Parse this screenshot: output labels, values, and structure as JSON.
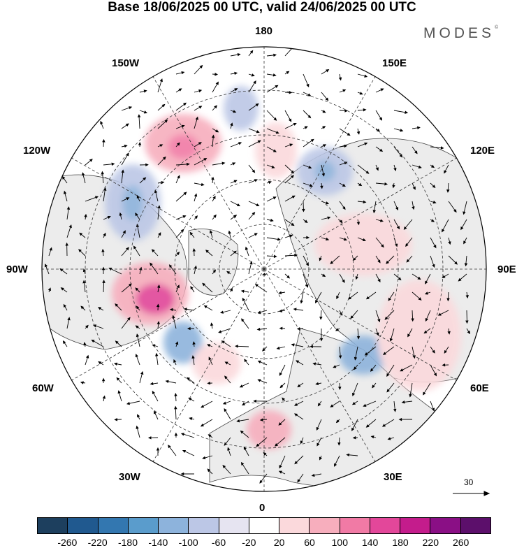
{
  "title": "Base 18/06/2025 00 UTC, valid 24/06/2025 00 UTC",
  "brand": "MODES",
  "brand_mark": "©",
  "longitude_labels": {
    "top": "180",
    "bottom": "0",
    "left": "90W",
    "right": "90E",
    "upper_left_1": "150W",
    "upper_left_2": "120W",
    "upper_right_1": "150E",
    "upper_right_2": "120E",
    "lower_left_1": "60W",
    "lower_left_2": "30W",
    "lower_right_1": "60E",
    "lower_right_2": "30E"
  },
  "reference_vector": {
    "label": "30"
  },
  "colorbar": {
    "ticks": [
      "-260",
      "-220",
      "-180",
      "-140",
      "-100",
      "-60",
      "-20",
      "20",
      "60",
      "100",
      "140",
      "180",
      "220",
      "260"
    ],
    "colors": [
      "#1d3f5e",
      "#20598f",
      "#3377b0",
      "#5a9ccc",
      "#8db3dc",
      "#bcc7e6",
      "#e6e4f1",
      "#ffffff",
      "#fbd9dc",
      "#f7aebd",
      "#f17aa5",
      "#e3479a",
      "#c41c8c",
      "#8a0f85",
      "#5c0f6b"
    ]
  },
  "anomaly_features": [
    {
      "sign": "positive",
      "strength": "strong",
      "color": "#e3479a"
    },
    {
      "sign": "positive",
      "strength": "moderate",
      "color": "#f17aa5"
    },
    {
      "sign": "negative",
      "strength": "moderate",
      "color": "#5a9ccc"
    },
    {
      "sign": "negative",
      "strength": "moderate",
      "color": "#8db3dc"
    }
  ]
}
